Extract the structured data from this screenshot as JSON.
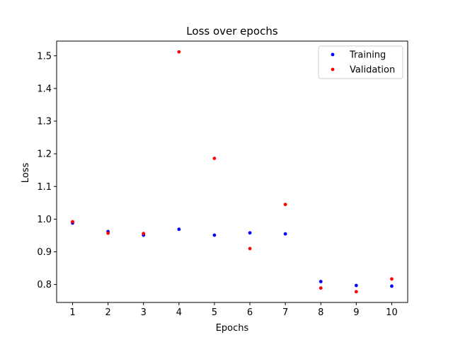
{
  "chart_data": {
    "type": "scatter",
    "title": "Loss over epochs",
    "xlabel": "Epochs",
    "ylabel": "Loss",
    "xlim": [
      0.55,
      10.45
    ],
    "ylim": [
      0.745,
      1.545
    ],
    "xticks": [
      1,
      2,
      3,
      4,
      5,
      6,
      7,
      8,
      9,
      10
    ],
    "yticks": [
      0.8,
      0.9,
      1.0,
      1.1,
      1.2,
      1.3,
      1.4,
      1.5
    ],
    "ytick_labels": [
      "0.8",
      "0.9",
      "1.0",
      "1.1",
      "1.2",
      "1.3",
      "1.4",
      "1.5"
    ],
    "grid": false,
    "legend_position": "top-right",
    "x": [
      1,
      2,
      3,
      4,
      5,
      6,
      7,
      8,
      9,
      10
    ],
    "series": [
      {
        "name": "Training",
        "color": "#0000ff",
        "values": [
          0.988,
          0.962,
          0.951,
          0.969,
          0.951,
          0.958,
          0.955,
          0.809,
          0.797,
          0.795
        ]
      },
      {
        "name": "Validation",
        "color": "#ff0000",
        "values": [
          0.992,
          0.957,
          0.956,
          1.512,
          1.186,
          0.91,
          1.045,
          0.789,
          0.778,
          0.817
        ]
      }
    ]
  }
}
